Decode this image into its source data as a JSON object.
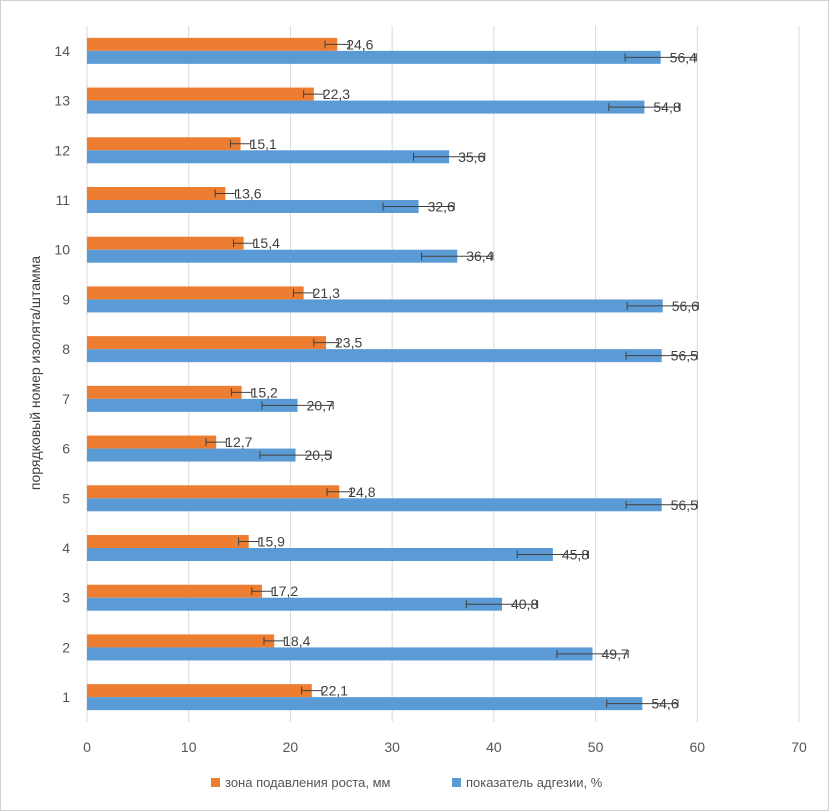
{
  "chart_data": {
    "type": "bar",
    "orientation": "horizontal",
    "title": "",
    "xlabel": "",
    "ylabel": "порядковый номер изолята/штамма",
    "xlim": [
      0,
      70
    ],
    "xticks": [
      0,
      10,
      20,
      30,
      40,
      50,
      60,
      70
    ],
    "xtick_labels": [
      "0",
      "10",
      "20",
      "30",
      "40",
      "50",
      "60",
      "70"
    ],
    "grid": true,
    "legend_position": "bottom",
    "categories": [
      "1",
      "2",
      "3",
      "4",
      "5",
      "6",
      "7",
      "8",
      "9",
      "10",
      "11",
      "12",
      "13",
      "14"
    ],
    "series": [
      {
        "name": "зона подавления роста, мм",
        "color": "#ED7D31",
        "values": [
          22.1,
          18.4,
          17.2,
          15.9,
          24.8,
          12.7,
          15.2,
          23.5,
          21.3,
          15.4,
          13.6,
          15.1,
          22.3,
          24.6
        ],
        "labels": [
          "22,1",
          "18,4",
          "17,2",
          "15,9",
          "24,8",
          "12,7",
          "15,2",
          "23,5",
          "21,3",
          "15,4",
          "13,6",
          "15,1",
          "22,3",
          "24,6"
        ],
        "error": [
          1.0,
          1.0,
          1.0,
          1.0,
          1.2,
          1.0,
          1.0,
          1.2,
          1.0,
          1.0,
          1.0,
          1.0,
          1.0,
          1.2
        ]
      },
      {
        "name": "показатель адгезии, %",
        "color": "#5B9BD5",
        "values": [
          54.6,
          49.7,
          40.8,
          45.8,
          56.5,
          20.5,
          20.7,
          56.5,
          56.6,
          36.4,
          32.6,
          35.6,
          54.8,
          56.4
        ],
        "labels": [
          "54,6",
          "49,7",
          "40,8",
          "45,8",
          "56,5",
          "20,5",
          "20,7",
          "56,5",
          "56,6",
          "36,4",
          "32,6",
          "35,6",
          "54,8",
          "56,4"
        ],
        "error": [
          3.5,
          3.5,
          3.5,
          3.5,
          3.5,
          3.5,
          3.5,
          3.5,
          3.5,
          3.5,
          3.5,
          3.5,
          3.5,
          3.5
        ]
      }
    ]
  }
}
